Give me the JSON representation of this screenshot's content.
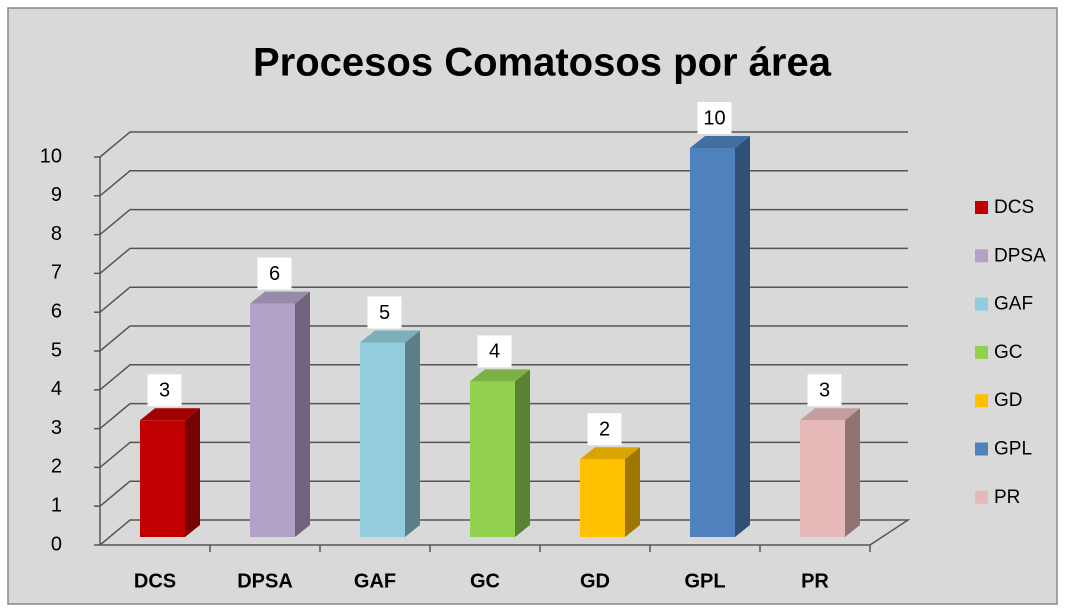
{
  "chart_data": {
    "type": "bar3d",
    "title": "Procesos Comatosos por área",
    "categories": [
      "DCS",
      "DPSA",
      "GAF",
      "GC",
      "GD",
      "GPL",
      "PR"
    ],
    "values": [
      3,
      6,
      5,
      4,
      2,
      10,
      3
    ],
    "colors": [
      "#c00000",
      "#b3a2c7",
      "#93cddd",
      "#92d050",
      "#ffc000",
      "#4f81bd",
      "#e6b9b8"
    ],
    "ylim": [
      0,
      10
    ],
    "yticks": [
      0,
      1,
      2,
      3,
      4,
      5,
      6,
      7,
      8,
      9,
      10
    ],
    "grid": true,
    "legend": "right"
  }
}
